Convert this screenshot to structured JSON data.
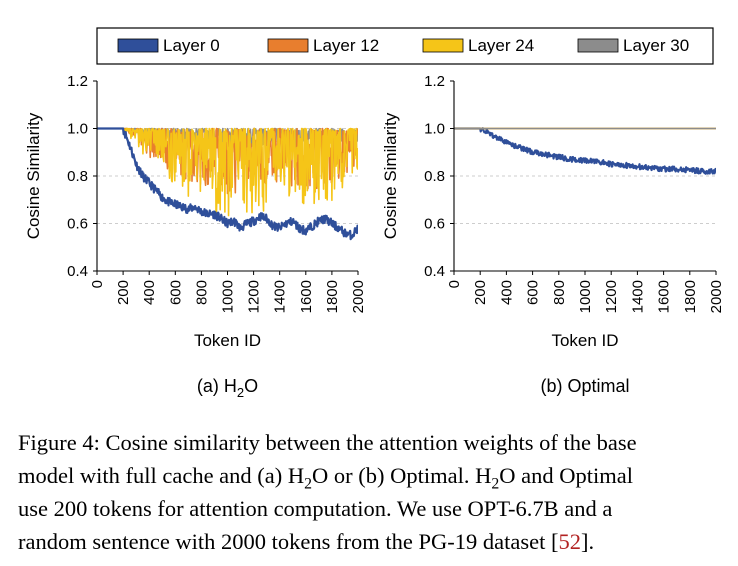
{
  "chart_data": [
    {
      "type": "line",
      "subtitle": "(a) H2O",
      "subtitle_main": "(a) H",
      "subtitle_sub": "2",
      "subtitle_end": "O",
      "xlabel": "Token ID",
      "ylabel": "Cosine Similarity",
      "xlim": [
        0,
        2000
      ],
      "ylim": [
        0.4,
        1.2
      ],
      "xticks": [
        "0",
        "200",
        "400",
        "600",
        "800",
        "1000",
        "1200",
        "1400",
        "1600",
        "1800",
        "2000"
      ],
      "yticks": [
        "0.4",
        "0.6",
        "0.8",
        "1.0",
        "1.2"
      ],
      "grid": "horizontal dashed",
      "series": [
        {
          "name": "Layer 0",
          "color": "#2f4f9a",
          "x": [
            0,
            200,
            250,
            300,
            350,
            400,
            450,
            500,
            550,
            600,
            650,
            700,
            750,
            800,
            850,
            900,
            950,
            1000,
            1050,
            1100,
            1150,
            1200,
            1250,
            1300,
            1350,
            1400,
            1450,
            1500,
            1550,
            1600,
            1650,
            1700,
            1750,
            1800,
            1850,
            1900,
            1950,
            2000
          ],
          "values": [
            1.0,
            1.0,
            0.93,
            0.85,
            0.8,
            0.77,
            0.74,
            0.71,
            0.69,
            0.68,
            0.67,
            0.66,
            0.67,
            0.65,
            0.64,
            0.64,
            0.62,
            0.6,
            0.61,
            0.58,
            0.6,
            0.61,
            0.63,
            0.62,
            0.59,
            0.58,
            0.6,
            0.61,
            0.58,
            0.57,
            0.59,
            0.61,
            0.62,
            0.6,
            0.58,
            0.56,
            0.55,
            0.58
          ]
        },
        {
          "name": "Layer 12",
          "color": "#e87e2e",
          "x": [
            0,
            200,
            300,
            400,
            500,
            600,
            700,
            800,
            900,
            1000,
            1100,
            1200,
            1300,
            1400,
            1500,
            1600,
            1700,
            1800,
            1900,
            2000
          ],
          "values": [
            1.0,
            1.0,
            0.98,
            0.95,
            0.93,
            0.92,
            0.91,
            0.9,
            0.89,
            0.88,
            0.89,
            0.88,
            0.9,
            0.89,
            0.9,
            0.88,
            0.89,
            0.9,
            0.92,
            0.94
          ]
        },
        {
          "name": "Layer 24",
          "color": "#f5c518",
          "x": [
            0,
            200,
            300,
            400,
            500,
            600,
            700,
            800,
            900,
            1000,
            1100,
            1200,
            1300,
            1400,
            1500,
            1600,
            1700,
            1800,
            1900,
            2000
          ],
          "values": [
            1.0,
            1.0,
            0.97,
            0.94,
            0.92,
            0.9,
            0.88,
            0.86,
            0.85,
            0.84,
            0.85,
            0.84,
            0.86,
            0.87,
            0.88,
            0.85,
            0.86,
            0.87,
            0.9,
            0.93
          ]
        },
        {
          "name": "Layer 30",
          "color": "#8c8c8c",
          "x": [
            0,
            200,
            300,
            400,
            500,
            600,
            700,
            800,
            900,
            1000,
            1100,
            1200,
            1300,
            1400,
            1500,
            1600,
            1700,
            1800,
            1900,
            2000
          ],
          "values": [
            1.0,
            1.0,
            0.99,
            0.98,
            0.98,
            0.97,
            0.97,
            0.97,
            0.96,
            0.96,
            0.96,
            0.96,
            0.96,
            0.97,
            0.96,
            0.96,
            0.96,
            0.97,
            0.97,
            0.97
          ]
        }
      ]
    },
    {
      "type": "line",
      "subtitle": "(b) Optimal",
      "xlabel": "Token ID",
      "ylabel": "Cosine Similarity",
      "xlim": [
        0,
        2000
      ],
      "ylim": [
        0.4,
        1.2
      ],
      "xticks": [
        "0",
        "200",
        "400",
        "600",
        "800",
        "1000",
        "1200",
        "1400",
        "1600",
        "1800",
        "2000"
      ],
      "yticks": [
        "0.4",
        "0.6",
        "0.8",
        "1.0",
        "1.2"
      ],
      "grid": "horizontal dashed",
      "series": [
        {
          "name": "Layer 0",
          "color": "#2f4f9a",
          "x": [
            0,
            200,
            300,
            400,
            500,
            600,
            700,
            800,
            900,
            1000,
            1100,
            1200,
            1300,
            1400,
            1500,
            1600,
            1700,
            1800,
            1900,
            2000
          ],
          "values": [
            1.0,
            1.0,
            0.97,
            0.94,
            0.92,
            0.9,
            0.89,
            0.88,
            0.87,
            0.865,
            0.86,
            0.85,
            0.845,
            0.84,
            0.835,
            0.83,
            0.83,
            0.825,
            0.82,
            0.82
          ]
        },
        {
          "name": "Layer 12",
          "color": "#e87e2e",
          "x": [
            0,
            2000
          ],
          "values": [
            1.0,
            1.0
          ]
        },
        {
          "name": "Layer 24",
          "color": "#f5c518",
          "x": [
            0,
            2000
          ],
          "values": [
            1.0,
            1.0
          ]
        },
        {
          "name": "Layer 30",
          "color": "#8c8c8c",
          "x": [
            0,
            2000
          ],
          "values": [
            1.0,
            1.0
          ]
        }
      ]
    }
  ],
  "legend": {
    "placement": "top",
    "items": [
      {
        "label": "Layer 0",
        "color": "#2f4f9a"
      },
      {
        "label": "Layer 12",
        "color": "#e87e2e"
      },
      {
        "label": "Layer 24",
        "color": "#f5c518"
      },
      {
        "label": "Layer 30",
        "color": "#8c8c8c"
      }
    ]
  },
  "caption": {
    "line1": "Figure 4: Cosine similarity between the attention weights of the base",
    "line2a": "model with full cache and (a) H",
    "sub1": "2",
    "line2b": "O or (b) Optimal. H",
    "sub2": "2",
    "line2c": "O and Optimal",
    "line3": "use 200 tokens for attention computation. We use OPT-6.7B and a",
    "line4a": "random sentence with 2000 tokens from the PG-19 dataset [",
    "citation": "52",
    "line4b": "]."
  }
}
